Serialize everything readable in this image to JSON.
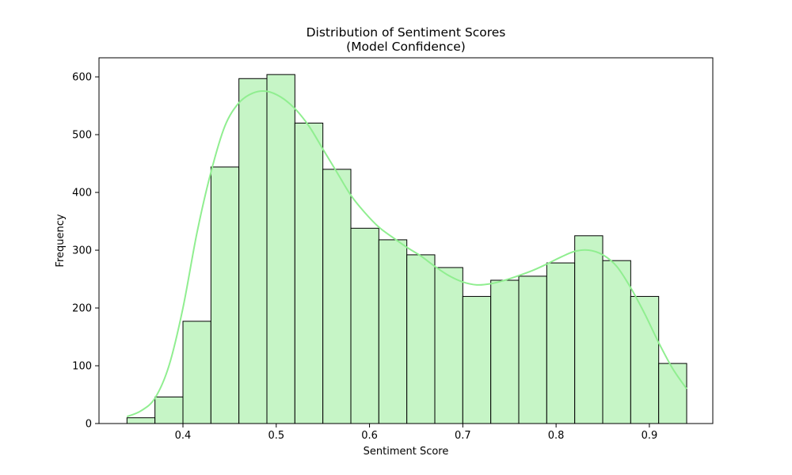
{
  "chart_data": {
    "type": "bar",
    "subtype": "histogram",
    "title": "Distribution of Sentiment Scores",
    "subtitle": "(Model Confidence)",
    "xlabel": "Sentiment Score",
    "ylabel": "Frequency",
    "xlim": [
      0.31,
      0.968
    ],
    "ylim": [
      0,
      633
    ],
    "xticks": [
      0.4,
      0.5,
      0.6,
      0.7,
      0.8,
      0.9
    ],
    "xtick_labels": [
      "0.4",
      "0.5",
      "0.6",
      "0.7",
      "0.8",
      "0.9"
    ],
    "yticks": [
      0,
      100,
      200,
      300,
      400,
      500,
      600
    ],
    "ytick_labels": [
      "0",
      "100",
      "200",
      "300",
      "400",
      "500",
      "600"
    ],
    "bin_edges": [
      0.34,
      0.37,
      0.4,
      0.43,
      0.46,
      0.49,
      0.52,
      0.55,
      0.58,
      0.61,
      0.64,
      0.67,
      0.7,
      0.73,
      0.76,
      0.79,
      0.82,
      0.85,
      0.88,
      0.91,
      0.94
    ],
    "values": [
      10,
      46,
      177,
      444,
      597,
      604,
      520,
      440,
      338,
      318,
      292,
      270,
      220,
      248,
      255,
      278,
      325,
      282,
      220,
      104
    ],
    "kde": {
      "x": [
        0.34,
        0.355,
        0.37,
        0.385,
        0.4,
        0.415,
        0.43,
        0.445,
        0.46,
        0.475,
        0.49,
        0.505,
        0.52,
        0.535,
        0.55,
        0.565,
        0.58,
        0.595,
        0.61,
        0.625,
        0.64,
        0.655,
        0.67,
        0.685,
        0.7,
        0.715,
        0.73,
        0.745,
        0.76,
        0.775,
        0.79,
        0.805,
        0.82,
        0.835,
        0.85,
        0.865,
        0.88,
        0.895,
        0.91,
        0.925,
        0.94
      ],
      "y": [
        12,
        22,
        44,
        100,
        200,
        330,
        435,
        515,
        555,
        572,
        575,
        565,
        545,
        515,
        475,
        435,
        395,
        365,
        340,
        322,
        305,
        290,
        272,
        256,
        245,
        240,
        242,
        248,
        256,
        265,
        276,
        288,
        298,
        300,
        292,
        272,
        235,
        190,
        140,
        95,
        60
      ]
    },
    "colors": {
      "bar_fill": "#c6f5c6",
      "bar_edge": "#000000",
      "kde_line": "#90ee90"
    },
    "grid": false,
    "legend": "none"
  }
}
